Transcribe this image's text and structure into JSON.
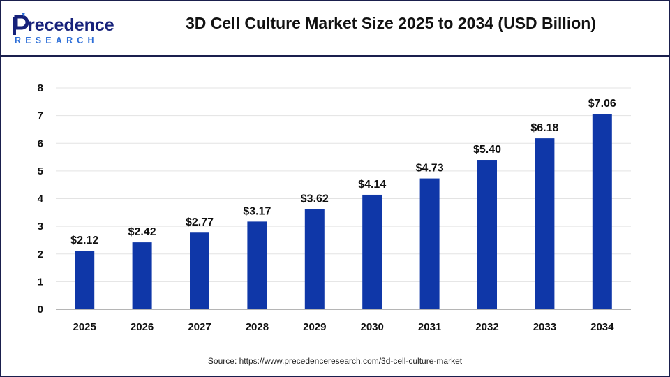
{
  "brand": {
    "name_prefix": "P",
    "name_rest": "recedence",
    "name_sub": "RESEARCH",
    "colors": {
      "primary": "#16217a",
      "accent": "#2e6fd8"
    }
  },
  "title": "3D Cell Culture Market Size 2025 to 2034 (USD Billion)",
  "source": "Source: https://www.precedenceresearch.com/3d-cell-culture-market",
  "chart_data": {
    "type": "bar",
    "categories": [
      "2025",
      "2026",
      "2027",
      "2028",
      "2029",
      "2030",
      "2031",
      "2032",
      "2033",
      "2034"
    ],
    "values": [
      2.12,
      2.42,
      2.77,
      3.17,
      3.62,
      4.14,
      4.73,
      5.4,
      6.18,
      7.06
    ],
    "data_labels": [
      "$2.12",
      "$2.42",
      "$2.77",
      "$3.17",
      "$3.62",
      "$4.14",
      "$4.73",
      "$5.40",
      "$6.18",
      "$7.06"
    ],
    "y_ticks": [
      "0",
      "1",
      "2",
      "3",
      "4",
      "5",
      "6",
      "7",
      "8"
    ],
    "ylim": [
      0,
      8
    ],
    "grid": true,
    "bar_color": "#0f37a8",
    "title": "3D Cell Culture Market Size 2025 to 2034 (USD Billion)",
    "xlabel": "",
    "ylabel": ""
  }
}
